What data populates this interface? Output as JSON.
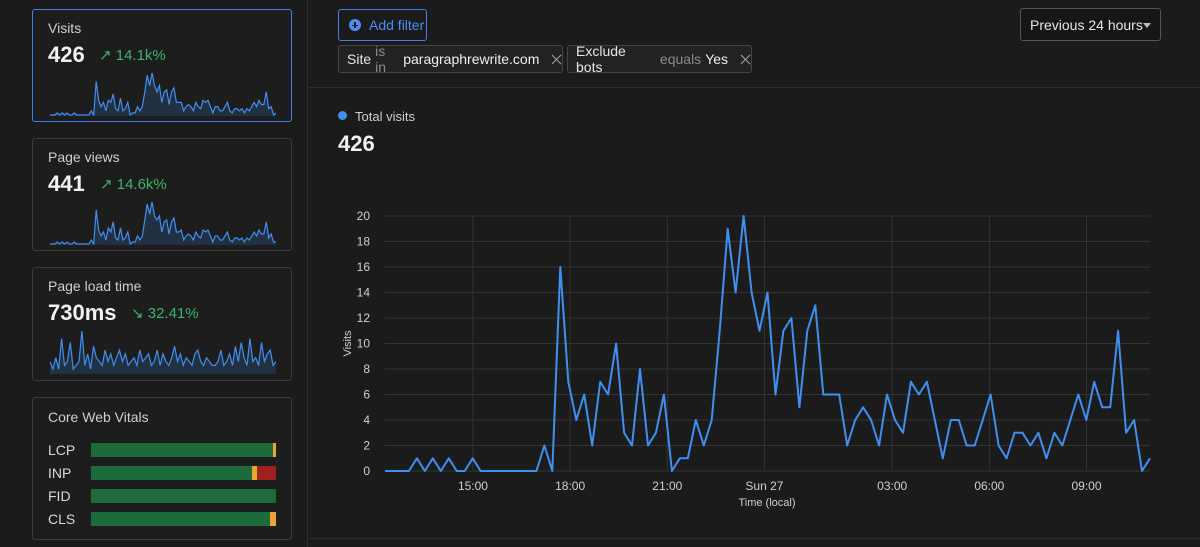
{
  "sidebar": {
    "visits": {
      "label": "Visits",
      "value": "426",
      "delta": "↗ 14.1k%"
    },
    "page_views": {
      "label": "Page views",
      "value": "441",
      "delta": "↗ 14.6k%"
    },
    "page_load": {
      "label": "Page load time",
      "value": "730ms",
      "delta": "↘ 32.41%"
    },
    "cwv": {
      "title": "Core Web Vitals",
      "rows": [
        {
          "label": "LCP",
          "good": 0.985,
          "mid": 0.015,
          "bad": 0
        },
        {
          "label": "INP",
          "good": 0.87,
          "mid": 0.025,
          "bad": 0.105
        },
        {
          "label": "FID",
          "good": 1.0,
          "mid": 0,
          "bad": 0
        },
        {
          "label": "CLS",
          "good": 0.965,
          "mid": 0.035,
          "bad": 0
        }
      ]
    },
    "sparks": {
      "visits": [
        0,
        0,
        0,
        1,
        0,
        1,
        0,
        1,
        0,
        0,
        1,
        0,
        0,
        0,
        0,
        0,
        0,
        2,
        0,
        16,
        7,
        4,
        6,
        2,
        7,
        6,
        10,
        3,
        2,
        8,
        2,
        3,
        6,
        0,
        1,
        1,
        4,
        2,
        4,
        11,
        19,
        14,
        20,
        14,
        11,
        14,
        6,
        11,
        12,
        5,
        11,
        13,
        6,
        6,
        6,
        2,
        4,
        5,
        4,
        2,
        6,
        4,
        3,
        7,
        6,
        7,
        4,
        1,
        4,
        4,
        2,
        2,
        4,
        6,
        2,
        1,
        3,
        3,
        2,
        3,
        1,
        3,
        2,
        4,
        6,
        4,
        7,
        5,
        5,
        11,
        3,
        4,
        0,
        1
      ],
      "page_views": [
        0,
        0,
        0,
        1,
        0,
        1,
        0,
        1,
        0,
        0,
        1,
        0,
        0,
        0,
        0,
        0,
        0,
        2,
        0,
        17,
        7,
        4,
        6,
        2,
        8,
        6,
        11,
        3,
        2,
        8,
        2,
        3,
        6,
        0,
        1,
        1,
        4,
        2,
        4,
        12,
        20,
        15,
        21,
        14,
        12,
        14,
        6,
        11,
        12,
        5,
        11,
        13,
        6,
        6,
        7,
        2,
        4,
        5,
        4,
        2,
        6,
        4,
        3,
        7,
        6,
        7,
        4,
        1,
        4,
        4,
        2,
        2,
        4,
        6,
        2,
        1,
        3,
        3,
        2,
        3,
        1,
        3,
        2,
        4,
        6,
        4,
        7,
        5,
        5,
        11,
        3,
        5,
        1,
        1
      ],
      "page_load": [
        3,
        1,
        4,
        1,
        9,
        2,
        3,
        8,
        1,
        2,
        3,
        11,
        2,
        5,
        1,
        7,
        4,
        3,
        2,
        6,
        3,
        5,
        2,
        4,
        6,
        3,
        5,
        2,
        3,
        4,
        2,
        6,
        3,
        4,
        5,
        2,
        3,
        6,
        2,
        5,
        3,
        2,
        4,
        7,
        3,
        5,
        2,
        4,
        3,
        2,
        5,
        6,
        3,
        2,
        4,
        3,
        2,
        2,
        3,
        6,
        2,
        3,
        5,
        2,
        7,
        3,
        8,
        4,
        2,
        9,
        3,
        4,
        2,
        8,
        3,
        5,
        6,
        2,
        3
      ]
    }
  },
  "toolbar": {
    "add_filter": "Add filter",
    "range": "Previous 24 hours",
    "filters": [
      {
        "key": "Site",
        "op": "is in",
        "value": "paragraphrewrite.com"
      },
      {
        "key": "Exclude bots",
        "op": "equals",
        "value": "Yes"
      }
    ]
  },
  "summary": {
    "legend": "Total visits",
    "total": "426"
  },
  "chart_data": {
    "type": "line",
    "xlabel": "Time (local)",
    "ylabel": "Visits",
    "ylim": [
      0,
      20
    ],
    "yticks": [
      0,
      2,
      4,
      6,
      8,
      10,
      12,
      14,
      16,
      18,
      20
    ],
    "xticks": [
      "15:00",
      "18:00",
      "21:00",
      "Sun 27",
      "03:00",
      "06:00",
      "09:00"
    ],
    "series": [
      {
        "color": "#3f8ff0",
        "values": [
          0,
          0,
          0,
          0,
          1,
          0,
          1,
          0,
          1,
          0,
          0,
          1,
          0,
          0,
          0,
          0,
          0,
          0,
          0,
          0,
          2,
          0,
          16,
          7,
          4,
          6,
          2,
          7,
          6,
          10,
          3,
          2,
          8,
          2,
          3,
          6,
          0,
          1,
          1,
          4,
          2,
          4,
          11,
          19,
          14,
          20,
          14,
          11,
          14,
          6,
          11,
          12,
          5,
          11,
          13,
          6,
          6,
          6,
          2,
          4,
          5,
          4,
          2,
          6,
          4,
          3,
          7,
          6,
          7,
          4,
          1,
          4,
          4,
          2,
          2,
          4,
          6,
          2,
          1,
          3,
          3,
          2,
          3,
          1,
          3,
          2,
          4,
          6,
          4,
          7,
          5,
          5,
          11,
          3,
          4,
          0,
          1
        ]
      }
    ]
  }
}
